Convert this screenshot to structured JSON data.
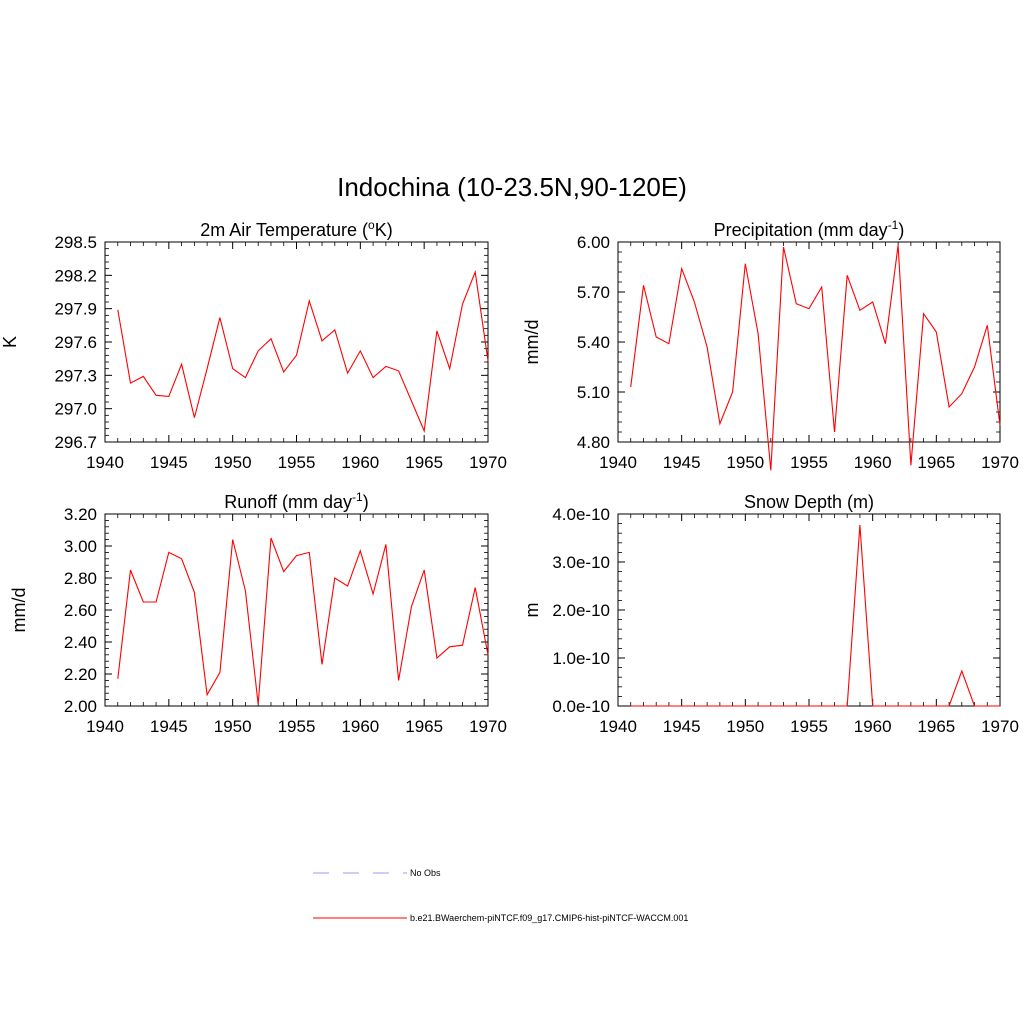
{
  "figure": {
    "title": "Indochina (10-23.5N,90-120E)"
  },
  "legend": {
    "entries": [
      {
        "label": "No Obs",
        "color": "#9999ff",
        "style": "dashed"
      },
      {
        "label": "b.e21.BWaerchem-piNTCF.f09_g17.CMIP6-hist-piNTCF-WACCM.001",
        "color": "#ff0000",
        "style": "solid"
      }
    ]
  },
  "chart_data": [
    {
      "type": "line",
      "title": "2m Air Temperature (",
      "title_sup": "o",
      "title_after": "K)",
      "ylabel": "K",
      "xlabel": "",
      "xlim": [
        1940,
        1970
      ],
      "ylim": [
        296.7,
        298.5
      ],
      "xticks": [
        "1940",
        "1945",
        "1950",
        "1955",
        "1960",
        "1965",
        "1970"
      ],
      "yticks": [
        "296.7",
        "297.0",
        "297.3",
        "297.6",
        "297.9",
        "298.2",
        "298.5"
      ],
      "series": [
        {
          "color": "#ff0000",
          "x": [
            1941,
            1942,
            1943,
            1944,
            1945,
            1946,
            1947,
            1948,
            1949,
            1950,
            1951,
            1952,
            1953,
            1954,
            1955,
            1956,
            1957,
            1958,
            1959,
            1960,
            1961,
            1962,
            1963,
            1964,
            1965,
            1966,
            1967,
            1968,
            1969,
            1970
          ],
          "values": [
            297.89,
            297.23,
            297.29,
            297.12,
            297.11,
            297.4,
            296.92,
            297.36,
            297.82,
            297.36,
            297.28,
            297.52,
            297.63,
            297.33,
            297.48,
            297.97,
            297.61,
            297.71,
            297.32,
            297.52,
            297.28,
            297.38,
            297.34,
            297.07,
            296.8,
            297.7,
            297.36,
            297.94,
            298.23,
            297.43
          ]
        }
      ]
    },
    {
      "type": "line",
      "title": "Precipitation (mm day",
      "title_sup": "-1",
      "title_after": ")",
      "ylabel": "mm/d",
      "xlabel": "",
      "xlim": [
        1940,
        1970
      ],
      "ylim": [
        4.8,
        6.0
      ],
      "xticks": [
        "1940",
        "1945",
        "1950",
        "1955",
        "1960",
        "1965",
        "1970"
      ],
      "yticks": [
        "4.80",
        "5.10",
        "5.40",
        "5.70",
        "6.00"
      ],
      "series": [
        {
          "color": "#ff0000",
          "x": [
            1941,
            1942,
            1943,
            1944,
            1945,
            1946,
            1947,
            1948,
            1949,
            1950,
            1951,
            1952,
            1953,
            1954,
            1955,
            1956,
            1957,
            1958,
            1959,
            1960,
            1961,
            1962,
            1963,
            1964,
            1965,
            1966,
            1967,
            1968,
            1969,
            1970
          ],
          "values": [
            5.13,
            5.74,
            5.43,
            5.39,
            5.84,
            5.64,
            5.37,
            4.91,
            5.1,
            5.87,
            5.45,
            4.63,
            5.97,
            5.63,
            5.6,
            5.73,
            4.86,
            5.8,
            5.59,
            5.64,
            5.39,
            5.98,
            4.66,
            5.57,
            5.46,
            5.01,
            5.09,
            5.25,
            5.5,
            4.9
          ]
        }
      ]
    },
    {
      "type": "line",
      "title": "Runoff (mm day",
      "title_sup": "-1",
      "title_after": ")",
      "ylabel": "mm/d",
      "xlabel": "",
      "xlim": [
        1940,
        1970
      ],
      "ylim": [
        2.0,
        3.2
      ],
      "xticks": [
        "1940",
        "1945",
        "1950",
        "1955",
        "1960",
        "1965",
        "1970"
      ],
      "yticks": [
        "2.00",
        "2.20",
        "2.40",
        "2.60",
        "2.80",
        "3.00",
        "3.20"
      ],
      "series": [
        {
          "color": "#ff0000",
          "x": [
            1941,
            1942,
            1943,
            1944,
            1945,
            1946,
            1947,
            1948,
            1949,
            1950,
            1951,
            1952,
            1953,
            1954,
            1955,
            1956,
            1957,
            1958,
            1959,
            1960,
            1961,
            1962,
            1963,
            1964,
            1965,
            1966,
            1967,
            1968,
            1969,
            1970
          ],
          "values": [
            2.17,
            2.85,
            2.65,
            2.65,
            2.96,
            2.92,
            2.71,
            2.07,
            2.21,
            3.04,
            2.72,
            2.01,
            3.05,
            2.84,
            2.94,
            2.96,
            2.26,
            2.8,
            2.75,
            2.97,
            2.7,
            3.01,
            2.16,
            2.62,
            2.85,
            2.3,
            2.37,
            2.38,
            2.74,
            2.32
          ]
        }
      ]
    },
    {
      "type": "line",
      "title": "Snow Depth (m)",
      "title_sup": "",
      "title_after": "",
      "ylabel": "m",
      "xlabel": "",
      "xlim": [
        1940,
        1970
      ],
      "ylim": [
        0,
        4e-10
      ],
      "xticks": [
        "1940",
        "1945",
        "1950",
        "1955",
        "1960",
        "1965",
        "1970"
      ],
      "yticks": [
        "0.0e-10",
        "1.0e-10",
        "2.0e-10",
        "3.0e-10",
        "4.0e-10"
      ],
      "series": [
        {
          "color": "#ff0000",
          "x": [
            1941,
            1942,
            1943,
            1944,
            1945,
            1946,
            1947,
            1948,
            1949,
            1950,
            1951,
            1952,
            1953,
            1954,
            1955,
            1956,
            1957,
            1958,
            1959,
            1960,
            1961,
            1962,
            1963,
            1964,
            1965,
            1966,
            1967,
            1968,
            1969,
            1970
          ],
          "values": [
            0,
            0,
            0,
            0,
            0,
            0,
            0,
            0,
            0,
            0,
            0,
            0,
            0,
            0,
            0,
            0,
            0,
            0,
            3.77e-10,
            0,
            0,
            0,
            0,
            0,
            0,
            0,
            7.3e-11,
            0,
            0,
            0
          ]
        }
      ]
    }
  ]
}
